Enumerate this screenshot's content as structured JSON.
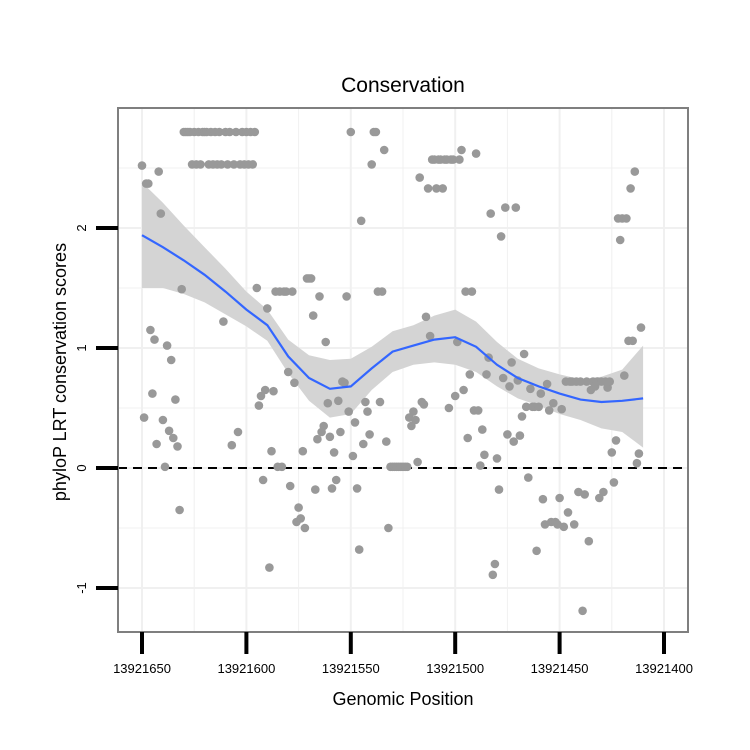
{
  "chart_data": {
    "type": "scatter",
    "title": "Conservation",
    "xlabel": "Genomic Position",
    "ylabel": "phyloP LRT conservation scores",
    "x_reversed": true,
    "xlim": [
      13921400,
      13921650
    ],
    "ylim": [
      -1.4,
      3.0
    ],
    "xticks": [
      13921650,
      13921600,
      13921550,
      13921500,
      13921450,
      13921400
    ],
    "xtick_labels": [
      "13921650",
      "13921600",
      "13921550",
      "13921500",
      "13921450",
      "13921400"
    ],
    "yticks": [
      -1,
      0,
      1,
      2
    ],
    "ytick_labels": [
      "-1",
      "0",
      "1",
      "2"
    ],
    "grid": true,
    "reference_line": {
      "y": 0,
      "style": "dashed"
    },
    "colors": {
      "points": "#999999",
      "smooth": "#3366ff",
      "ribbon": "#d4d4d4",
      "panel_border": "#7f7f7f",
      "grid": "#f0f0f0",
      "reference_line": "#000000"
    },
    "points": [
      {
        "x": 13921650,
        "y": 2.52
      },
      {
        "x": 13921649,
        "y": 0.42
      },
      {
        "x": 13921648,
        "y": 2.37
      },
      {
        "x": 13921647,
        "y": 2.37
      },
      {
        "x": 13921646,
        "y": 1.15
      },
      {
        "x": 13921645,
        "y": 0.62
      },
      {
        "x": 13921644,
        "y": 1.07
      },
      {
        "x": 13921643,
        "y": 0.2
      },
      {
        "x": 13921642,
        "y": 2.47
      },
      {
        "x": 13921641,
        "y": 2.12
      },
      {
        "x": 13921640,
        "y": 0.4
      },
      {
        "x": 13921639,
        "y": 0.01
      },
      {
        "x": 13921638,
        "y": 1.02
      },
      {
        "x": 13921637,
        "y": 0.31
      },
      {
        "x": 13921636,
        "y": 0.9
      },
      {
        "x": 13921635,
        "y": 0.25
      },
      {
        "x": 13921634,
        "y": 0.57
      },
      {
        "x": 13921633,
        "y": 0.18
      },
      {
        "x": 13921632,
        "y": -0.35
      },
      {
        "x": 13921631,
        "y": 1.49
      },
      {
        "x": 13921630,
        "y": 2.8
      },
      {
        "x": 13921629,
        "y": 2.8
      },
      {
        "x": 13921628,
        "y": 2.8
      },
      {
        "x": 13921627,
        "y": 2.8
      },
      {
        "x": 13921626,
        "y": 2.53
      },
      {
        "x": 13921625,
        "y": 2.8
      },
      {
        "x": 13921624,
        "y": 2.53
      },
      {
        "x": 13921623,
        "y": 2.8
      },
      {
        "x": 13921622,
        "y": 2.53
      },
      {
        "x": 13921621,
        "y": 2.8
      },
      {
        "x": 13921620,
        "y": 2.8
      },
      {
        "x": 13921619,
        "y": 2.8
      },
      {
        "x": 13921618,
        "y": 2.53
      },
      {
        "x": 13921617,
        "y": 2.8
      },
      {
        "x": 13921616,
        "y": 2.53
      },
      {
        "x": 13921615,
        "y": 2.8
      },
      {
        "x": 13921614,
        "y": 2.53
      },
      {
        "x": 13921613,
        "y": 2.8
      },
      {
        "x": 13921612,
        "y": 2.53
      },
      {
        "x": 13921611,
        "y": 1.22
      },
      {
        "x": 13921610,
        "y": 2.8
      },
      {
        "x": 13921609,
        "y": 2.53
      },
      {
        "x": 13921608,
        "y": 2.8
      },
      {
        "x": 13921607,
        "y": 0.19
      },
      {
        "x": 13921606,
        "y": 2.53
      },
      {
        "x": 13921605,
        "y": 2.8
      },
      {
        "x": 13921604,
        "y": 0.3
      },
      {
        "x": 13921603,
        "y": 2.53
      },
      {
        "x": 13921602,
        "y": 2.8
      },
      {
        "x": 13921601,
        "y": 2.53
      },
      {
        "x": 13921600,
        "y": 2.8
      },
      {
        "x": 13921599,
        "y": 2.53
      },
      {
        "x": 13921598,
        "y": 2.8
      },
      {
        "x": 13921597,
        "y": 2.53
      },
      {
        "x": 13921596,
        "y": 2.8
      },
      {
        "x": 13921595,
        "y": 1.5
      },
      {
        "x": 13921594,
        "y": 0.52
      },
      {
        "x": 13921593,
        "y": 0.6
      },
      {
        "x": 13921592,
        "y": -0.1
      },
      {
        "x": 13921591,
        "y": 0.65
      },
      {
        "x": 13921590,
        "y": 1.33
      },
      {
        "x": 13921589,
        "y": -0.83
      },
      {
        "x": 13921588,
        "y": 0.14
      },
      {
        "x": 13921587,
        "y": 0.64
      },
      {
        "x": 13921586,
        "y": 1.47
      },
      {
        "x": 13921585,
        "y": 0.01
      },
      {
        "x": 13921584,
        "y": 1.47
      },
      {
        "x": 13921583,
        "y": 0.01
      },
      {
        "x": 13921582,
        "y": 1.47
      },
      {
        "x": 13921581,
        "y": 1.47
      },
      {
        "x": 13921580,
        "y": 0.8
      },
      {
        "x": 13921579,
        "y": -0.15
      },
      {
        "x": 13921578,
        "y": 1.47
      },
      {
        "x": 13921577,
        "y": 0.71
      },
      {
        "x": 13921576,
        "y": -0.45
      },
      {
        "x": 13921575,
        "y": -0.33
      },
      {
        "x": 13921574,
        "y": -0.42
      },
      {
        "x": 13921573,
        "y": 0.14
      },
      {
        "x": 13921572,
        "y": -0.5
      },
      {
        "x": 13921571,
        "y": 1.58
      },
      {
        "x": 13921570,
        "y": 1.58
      },
      {
        "x": 13921569,
        "y": 1.58
      },
      {
        "x": 13921568,
        "y": 1.27
      },
      {
        "x": 13921567,
        "y": -0.18
      },
      {
        "x": 13921566,
        "y": 0.24
      },
      {
        "x": 13921565,
        "y": 1.43
      },
      {
        "x": 13921564,
        "y": 0.3
      },
      {
        "x": 13921563,
        "y": 0.35
      },
      {
        "x": 13921562,
        "y": 1.05
      },
      {
        "x": 13921561,
        "y": 0.54
      },
      {
        "x": 13921560,
        "y": 0.26
      },
      {
        "x": 13921559,
        "y": -0.17
      },
      {
        "x": 13921558,
        "y": 0.13
      },
      {
        "x": 13921557,
        "y": -0.1
      },
      {
        "x": 13921556,
        "y": 0.56
      },
      {
        "x": 13921555,
        "y": 0.3
      },
      {
        "x": 13921554,
        "y": 0.72
      },
      {
        "x": 13921553,
        "y": 0.71
      },
      {
        "x": 13921552,
        "y": 1.43
      },
      {
        "x": 13921551,
        "y": 0.47
      },
      {
        "x": 13921550,
        "y": 2.8
      },
      {
        "x": 13921549,
        "y": 0.1
      },
      {
        "x": 13921548,
        "y": 0.38
      },
      {
        "x": 13921547,
        "y": -0.17
      },
      {
        "x": 13921546,
        "y": -0.68
      },
      {
        "x": 13921545,
        "y": 2.06
      },
      {
        "x": 13921544,
        "y": 0.2
      },
      {
        "x": 13921543,
        "y": 0.55
      },
      {
        "x": 13921542,
        "y": 0.47
      },
      {
        "x": 13921541,
        "y": 0.28
      },
      {
        "x": 13921540,
        "y": 2.53
      },
      {
        "x": 13921539,
        "y": 2.8
      },
      {
        "x": 13921538,
        "y": 2.8
      },
      {
        "x": 13921537,
        "y": 1.47
      },
      {
        "x": 13921536,
        "y": 0.55
      },
      {
        "x": 13921535,
        "y": 1.47
      },
      {
        "x": 13921534,
        "y": 2.65
      },
      {
        "x": 13921533,
        "y": 0.22
      },
      {
        "x": 13921532,
        "y": -0.5
      },
      {
        "x": 13921531,
        "y": 0.01
      },
      {
        "x": 13921530,
        "y": 0.01
      },
      {
        "x": 13921529,
        "y": 0.01
      },
      {
        "x": 13921528,
        "y": 0.01
      },
      {
        "x": 13921527,
        "y": 0.01
      },
      {
        "x": 13921526,
        "y": 0.01
      },
      {
        "x": 13921525,
        "y": 0.01
      },
      {
        "x": 13921524,
        "y": 0.01
      },
      {
        "x": 13921523,
        "y": 0.01
      },
      {
        "x": 13921522,
        "y": 0.42
      },
      {
        "x": 13921521,
        "y": 0.35
      },
      {
        "x": 13921520,
        "y": 0.47
      },
      {
        "x": 13921519,
        "y": 0.4
      },
      {
        "x": 13921518,
        "y": 0.05
      },
      {
        "x": 13921517,
        "y": 2.42
      },
      {
        "x": 13921516,
        "y": 0.55
      },
      {
        "x": 13921515,
        "y": 0.53
      },
      {
        "x": 13921514,
        "y": 1.26
      },
      {
        "x": 13921513,
        "y": 2.33
      },
      {
        "x": 13921512,
        "y": 1.1
      },
      {
        "x": 13921511,
        "y": 2.57
      },
      {
        "x": 13921510,
        "y": 2.57
      },
      {
        "x": 13921509,
        "y": 2.33
      },
      {
        "x": 13921508,
        "y": 2.57
      },
      {
        "x": 13921507,
        "y": 2.57
      },
      {
        "x": 13921506,
        "y": 2.33
      },
      {
        "x": 13921505,
        "y": 2.57
      },
      {
        "x": 13921504,
        "y": 2.57
      },
      {
        "x": 13921503,
        "y": 0.5
      },
      {
        "x": 13921502,
        "y": 2.57
      },
      {
        "x": 13921501,
        "y": 2.57
      },
      {
        "x": 13921500,
        "y": 0.6
      },
      {
        "x": 13921499,
        "y": 1.05
      },
      {
        "x": 13921498,
        "y": 2.57
      },
      {
        "x": 13921497,
        "y": 2.65
      },
      {
        "x": 13921496,
        "y": 0.65
      },
      {
        "x": 13921495,
        "y": 1.47
      },
      {
        "x": 13921494,
        "y": 0.25
      },
      {
        "x": 13921493,
        "y": 0.78
      },
      {
        "x": 13921492,
        "y": 1.47
      },
      {
        "x": 13921491,
        "y": 0.48
      },
      {
        "x": 13921490,
        "y": 2.62
      },
      {
        "x": 13921489,
        "y": 0.48
      },
      {
        "x": 13921488,
        "y": 0.02
      },
      {
        "x": 13921487,
        "y": 0.32
      },
      {
        "x": 13921486,
        "y": 0.11
      },
      {
        "x": 13921485,
        "y": 0.78
      },
      {
        "x": 13921484,
        "y": 0.92
      },
      {
        "x": 13921483,
        "y": 2.12
      },
      {
        "x": 13921482,
        "y": -0.89
      },
      {
        "x": 13921481,
        "y": -0.8
      },
      {
        "x": 13921480,
        "y": 0.08
      },
      {
        "x": 13921479,
        "y": -0.18
      },
      {
        "x": 13921478,
        "y": 1.93
      },
      {
        "x": 13921477,
        "y": 0.75
      },
      {
        "x": 13921476,
        "y": 2.17
      },
      {
        "x": 13921475,
        "y": 0.28
      },
      {
        "x": 13921474,
        "y": 0.68
      },
      {
        "x": 13921473,
        "y": 0.88
      },
      {
        "x": 13921472,
        "y": 0.22
      },
      {
        "x": 13921471,
        "y": 2.17
      },
      {
        "x": 13921470,
        "y": 0.73
      },
      {
        "x": 13921469,
        "y": 0.27
      },
      {
        "x": 13921468,
        "y": 0.43
      },
      {
        "x": 13921467,
        "y": 0.95
      },
      {
        "x": 13921466,
        "y": 0.51
      },
      {
        "x": 13921465,
        "y": -0.08
      },
      {
        "x": 13921464,
        "y": 0.66
      },
      {
        "x": 13921463,
        "y": 0.51
      },
      {
        "x": 13921462,
        "y": 0.51
      },
      {
        "x": 13921461,
        "y": -0.69
      },
      {
        "x": 13921460,
        "y": 0.51
      },
      {
        "x": 13921459,
        "y": 0.62
      },
      {
        "x": 13921458,
        "y": -0.26
      },
      {
        "x": 13921457,
        "y": -0.47
      },
      {
        "x": 13921456,
        "y": 0.7
      },
      {
        "x": 13921455,
        "y": 0.48
      },
      {
        "x": 13921454,
        "y": -0.45
      },
      {
        "x": 13921453,
        "y": 0.54
      },
      {
        "x": 13921452,
        "y": -0.45
      },
      {
        "x": 13921451,
        "y": -0.47
      },
      {
        "x": 13921450,
        "y": -0.25
      },
      {
        "x": 13921449,
        "y": 0.49
      },
      {
        "x": 13921448,
        "y": -0.49
      },
      {
        "x": 13921447,
        "y": 0.72
      },
      {
        "x": 13921446,
        "y": -0.37
      },
      {
        "x": 13921445,
        "y": 0.72
      },
      {
        "x": 13921444,
        "y": 0.72
      },
      {
        "x": 13921443,
        "y": -0.47
      },
      {
        "x": 13921442,
        "y": 0.72
      },
      {
        "x": 13921441,
        "y": -0.2
      },
      {
        "x": 13921440,
        "y": 0.72
      },
      {
        "x": 13921439,
        "y": -1.19
      },
      {
        "x": 13921438,
        "y": -0.22
      },
      {
        "x": 13921437,
        "y": 0.72
      },
      {
        "x": 13921436,
        "y": -0.61
      },
      {
        "x": 13921435,
        "y": 0.65
      },
      {
        "x": 13921434,
        "y": 0.72
      },
      {
        "x": 13921433,
        "y": 0.68
      },
      {
        "x": 13921432,
        "y": 0.72
      },
      {
        "x": 13921431,
        "y": -0.25
      },
      {
        "x": 13921430,
        "y": 0.72
      },
      {
        "x": 13921429,
        "y": -0.2
      },
      {
        "x": 13921428,
        "y": 0.72
      },
      {
        "x": 13921427,
        "y": 0.67
      },
      {
        "x": 13921426,
        "y": 0.72
      },
      {
        "x": 13921425,
        "y": 0.13
      },
      {
        "x": 13921424,
        "y": -0.12
      },
      {
        "x": 13921423,
        "y": 0.23
      },
      {
        "x": 13921422,
        "y": 2.08
      },
      {
        "x": 13921421,
        "y": 1.9
      },
      {
        "x": 13921420,
        "y": 2.08
      },
      {
        "x": 13921419,
        "y": 0.77
      },
      {
        "x": 13921418,
        "y": 2.08
      },
      {
        "x": 13921417,
        "y": 1.06
      },
      {
        "x": 13921416,
        "y": 2.33
      },
      {
        "x": 13921415,
        "y": 1.06
      },
      {
        "x": 13921414,
        "y": 2.47
      },
      {
        "x": 13921413,
        "y": 0.04
      },
      {
        "x": 13921412,
        "y": 0.12
      },
      {
        "x": 13921411,
        "y": 1.17
      }
    ],
    "smooth_line": {
      "x": [
        13921650,
        13921640,
        13921630,
        13921620,
        13921610,
        13921600,
        13921590,
        13921580,
        13921570,
        13921560,
        13921550,
        13921540,
        13921530,
        13921520,
        13921510,
        13921500,
        13921490,
        13921480,
        13921470,
        13921460,
        13921450,
        13921440,
        13921430,
        13921420,
        13921410
      ],
      "y": [
        1.94,
        1.84,
        1.73,
        1.61,
        1.47,
        1.32,
        1.19,
        0.93,
        0.75,
        0.66,
        0.68,
        0.83,
        0.97,
        1.02,
        1.07,
        1.09,
        1.01,
        0.86,
        0.75,
        0.68,
        0.62,
        0.57,
        0.55,
        0.56,
        0.58
      ]
    },
    "confidence_band": {
      "x": [
        13921650,
        13921640,
        13921630,
        13921620,
        13921610,
        13921600,
        13921590,
        13921580,
        13921570,
        13921560,
        13921550,
        13921540,
        13921530,
        13921520,
        13921510,
        13921500,
        13921490,
        13921480,
        13921470,
        13921460,
        13921450,
        13921440,
        13921430,
        13921420,
        13921410
      ],
      "lower": [
        1.5,
        1.5,
        1.45,
        1.38,
        1.28,
        1.18,
        1.06,
        0.79,
        0.56,
        0.42,
        0.45,
        0.65,
        0.8,
        0.86,
        0.88,
        0.86,
        0.8,
        0.68,
        0.58,
        0.52,
        0.45,
        0.4,
        0.33,
        0.3,
        0.17
      ],
      "upper": [
        2.38,
        2.21,
        2.02,
        1.84,
        1.66,
        1.47,
        1.32,
        1.07,
        0.94,
        0.9,
        0.91,
        1.01,
        1.14,
        1.19,
        1.27,
        1.32,
        1.22,
        1.05,
        0.91,
        0.83,
        0.78,
        0.74,
        0.76,
        0.82,
        1.02
      ]
    }
  }
}
